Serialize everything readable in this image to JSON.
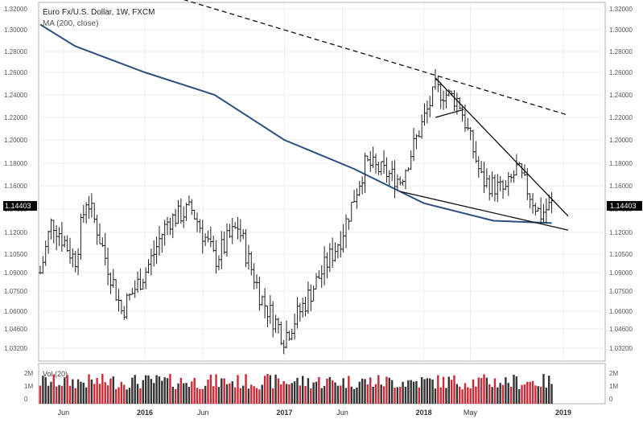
{
  "header": {
    "title": "Euro Fx/U.S. Dollar, 1W, FXCM",
    "indicator": "MA (200, close)"
  },
  "volume_panel": {
    "label": "Vol (20)",
    "y_ticks": [
      "2M",
      "1M",
      "0"
    ]
  },
  "price_badge": "1.14403",
  "colors": {
    "up_bar": "#222222",
    "ma_line": "#2e4f7f",
    "vol_up": "#333333",
    "vol_down": "#cc2a36",
    "badge_bg": "#000000",
    "badge_text": "#ffffff"
  },
  "chart_data": {
    "type": "ohlc",
    "title": "Euro Fx/U.S. Dollar, 1W, FXCM",
    "ylim": [
      1.02,
      1.33
    ],
    "y_ticks": [
      "1.32000",
      "1.30000",
      "1.28000",
      "1.26000",
      "1.24000",
      "1.22000",
      "1.20000",
      "1.18000",
      "1.16000",
      "1.14000",
      "1.12000",
      "1.10500",
      "1.09000",
      "1.07500",
      "1.06000",
      "1.04600",
      "1.03200"
    ],
    "x_ticks": [
      "Jun",
      "2016",
      "Jun",
      "2017",
      "Jun",
      "2018",
      "May",
      "2019"
    ],
    "price_anchors": [
      {
        "x": "Apr 2015",
        "y": 1.09
      },
      {
        "x": "May 2015",
        "y": 1.13
      },
      {
        "x": "Jul 2015",
        "y": 1.1
      },
      {
        "x": "Aug 2015",
        "y": 1.15
      },
      {
        "x": "Nov 2015",
        "y": 1.06
      },
      {
        "x": "Jan 2016",
        "y": 1.09
      },
      {
        "x": "Mar 2016",
        "y": 1.13
      },
      {
        "x": "May 2016",
        "y": 1.14
      },
      {
        "x": "Jul 2016",
        "y": 1.1
      },
      {
        "x": "Sep 2016",
        "y": 1.125
      },
      {
        "x": "Nov 2016",
        "y": 1.07
      },
      {
        "x": "Jan 2017",
        "y": 1.04
      },
      {
        "x": "Mar 2017",
        "y": 1.07
      },
      {
        "x": "Jun 2017",
        "y": 1.12
      },
      {
        "x": "Aug 2017",
        "y": 1.18
      },
      {
        "x": "Nov 2017",
        "y": 1.165
      },
      {
        "x": "Feb 2018",
        "y": 1.245
      },
      {
        "x": "Apr 2018",
        "y": 1.235
      },
      {
        "x": "Jun 2018",
        "y": 1.165
      },
      {
        "x": "Aug 2018",
        "y": 1.155
      },
      {
        "x": "Sep 2018",
        "y": 1.175
      },
      {
        "x": "Nov 2018",
        "y": 1.135
      },
      {
        "x": "Dec 2018",
        "y": 1.144
      }
    ],
    "ma_200": [
      {
        "x": "Apr 2015",
        "y": 1.305
      },
      {
        "x": "Jul 2015",
        "y": 1.285
      },
      {
        "x": "Jan 2016",
        "y": 1.26
      },
      {
        "x": "Jul 2016",
        "y": 1.24
      },
      {
        "x": "Jan 2017",
        "y": 1.2
      },
      {
        "x": "Jul 2017",
        "y": 1.175
      },
      {
        "x": "Jan 2018",
        "y": 1.145
      },
      {
        "x": "Jul 2018",
        "y": 1.13
      },
      {
        "x": "Dec 2018",
        "y": 1.128
      }
    ],
    "trendlines": [
      {
        "style": "dashed",
        "points": [
          {
            "x": "Jan 2016",
            "y": 1.34
          },
          {
            "x": "Jan 2019",
            "y": 1.222
          }
        ]
      },
      {
        "style": "solid",
        "points": [
          {
            "x": "Feb 2018",
            "y": 1.255
          },
          {
            "x": "Jan 2019",
            "y": 1.134
          }
        ]
      },
      {
        "style": "solid",
        "points": [
          {
            "x": "Nov 2017",
            "y": 1.155
          },
          {
            "x": "Jan 2019",
            "y": 1.122
          }
        ]
      },
      {
        "style": "solid",
        "points": [
          {
            "x": "Feb 2018",
            "y": 1.22
          },
          {
            "x": "Apr 2018",
            "y": 1.227
          }
        ]
      }
    ],
    "volume_range": [
      0,
      2.6
    ]
  }
}
